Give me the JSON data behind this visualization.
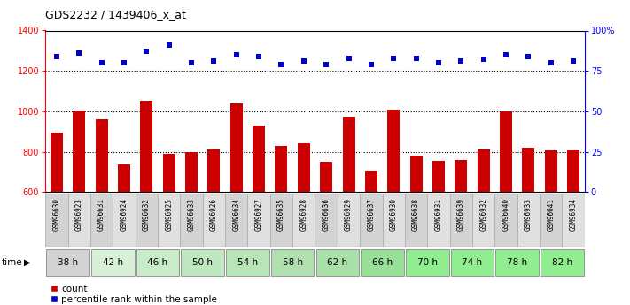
{
  "title": "GDS2232 / 1439406_x_at",
  "samples": [
    "GSM96630",
    "GSM96923",
    "GSM96631",
    "GSM96924",
    "GSM96632",
    "GSM96925",
    "GSM96633",
    "GSM96926",
    "GSM96634",
    "GSM96927",
    "GSM96635",
    "GSM96928",
    "GSM96636",
    "GSM96929",
    "GSM96637",
    "GSM96930",
    "GSM96638",
    "GSM96931",
    "GSM96639",
    "GSM96932",
    "GSM96640",
    "GSM96933",
    "GSM96641",
    "GSM96934"
  ],
  "time_groups": [
    {
      "label": "38 h",
      "start": 0,
      "end": 2,
      "color": "#d3d3d3"
    },
    {
      "label": "42 h",
      "start": 2,
      "end": 4,
      "color": "#d8f0d8"
    },
    {
      "label": "46 h",
      "start": 4,
      "end": 6,
      "color": "#c8ecc8"
    },
    {
      "label": "50 h",
      "start": 6,
      "end": 8,
      "color": "#c0e8c0"
    },
    {
      "label": "54 h",
      "start": 8,
      "end": 10,
      "color": "#b8e4b8"
    },
    {
      "label": "58 h",
      "start": 10,
      "end": 12,
      "color": "#b0e0b0"
    },
    {
      "label": "62 h",
      "start": 12,
      "end": 14,
      "color": "#a8e0a8"
    },
    {
      "label": "66 h",
      "start": 14,
      "end": 16,
      "color": "#98e098"
    },
    {
      "label": "70 h",
      "start": 16,
      "end": 18,
      "color": "#90ee90"
    },
    {
      "label": "74 h",
      "start": 18,
      "end": 20,
      "color": "#90ee90"
    },
    {
      "label": "78 h",
      "start": 20,
      "end": 22,
      "color": "#90ee90"
    },
    {
      "label": "82 h",
      "start": 22,
      "end": 24,
      "color": "#90ee90"
    }
  ],
  "bar_values": [
    895,
    1005,
    960,
    735,
    1050,
    790,
    800,
    810,
    1040,
    930,
    830,
    840,
    750,
    975,
    705,
    1010,
    780,
    755,
    760,
    810,
    1000,
    820,
    805,
    805
  ],
  "percentile_values": [
    84,
    86,
    80,
    80,
    87,
    91,
    80,
    81,
    85,
    84,
    79,
    81,
    79,
    83,
    79,
    83,
    83,
    80,
    81,
    82,
    85,
    84,
    80,
    81
  ],
  "bar_color": "#cc0000",
  "percentile_color": "#0000cc",
  "ylim_left": [
    600,
    1400
  ],
  "ylim_right": [
    0,
    100
  ],
  "yticks_left": [
    600,
    800,
    1000,
    1200,
    1400
  ],
  "yticks_right": [
    0,
    25,
    50,
    75,
    100
  ],
  "grid_values": [
    800,
    1000,
    1200
  ],
  "bar_bottom": 600,
  "legend_count_label": "count",
  "legend_pct_label": "percentile rank within the sample",
  "bg_color": "#ffffff",
  "cell_color_even": "#d3d3d3",
  "cell_color_odd": "#e0e0e0",
  "cell_border_color": "#aaaaaa"
}
